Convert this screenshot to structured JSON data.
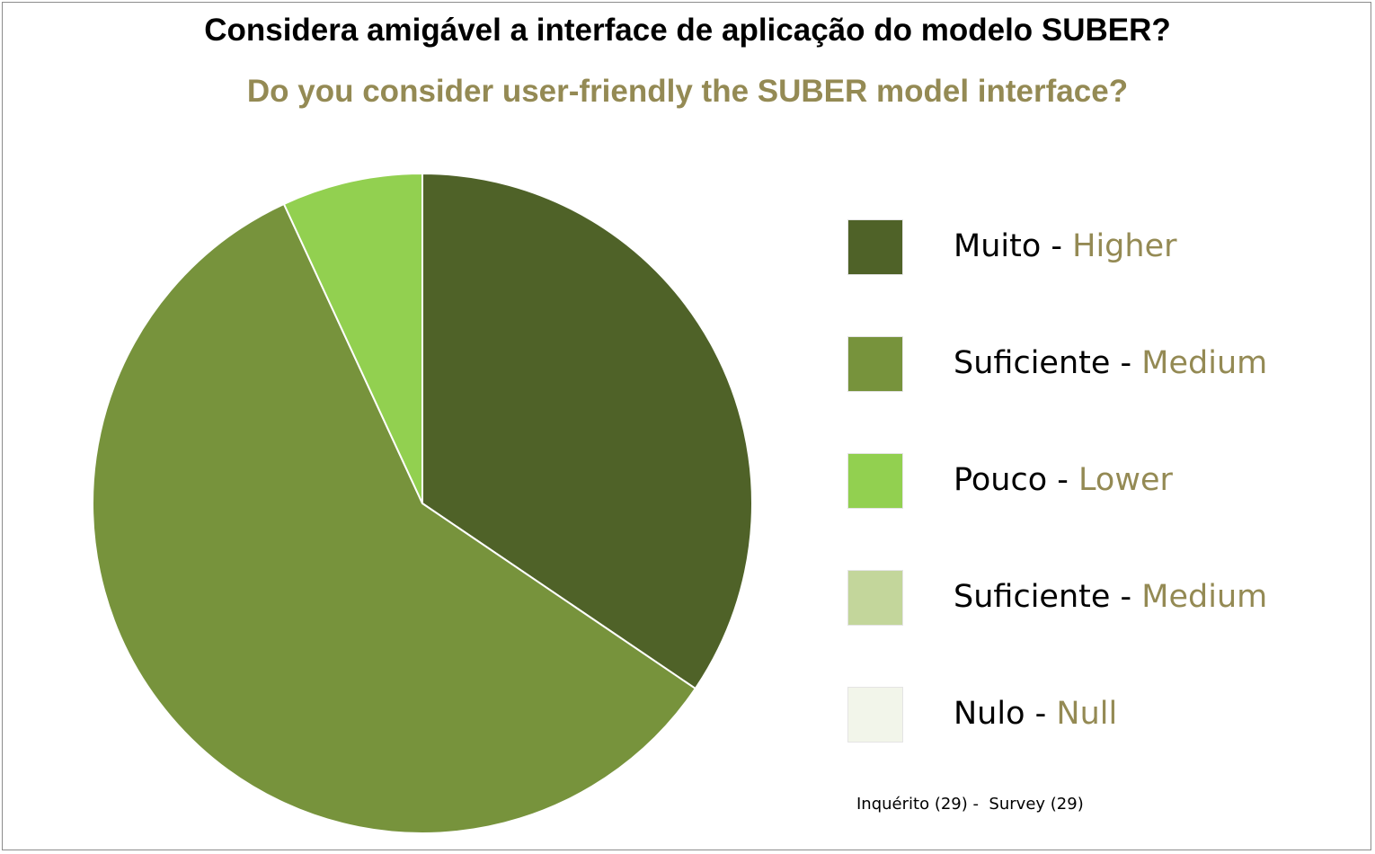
{
  "chart_data": {
    "type": "pie",
    "title": "Considera amigável a interface de aplicação do modelo SUBER?",
    "subtitle": "Do you consider user-friendly the SUBER model interface?",
    "slices": [
      {
        "label_pt": "Muito",
        "separator": " - ",
        "label_en": "Higher",
        "value": 10,
        "color": "#4f6228"
      },
      {
        "label_pt": "Suficiente",
        "separator": " - ",
        "label_en": "Medium",
        "value": 17,
        "color": "#77933c"
      },
      {
        "label_pt": "Pouco",
        "separator": " - ",
        "label_en": "Lower",
        "value": 2,
        "color": "#92d050"
      },
      {
        "label_pt": "Suficiente",
        "separator": " - ",
        "label_en": "Medium",
        "value": 0,
        "color": "#c3d69b"
      },
      {
        "label_pt": "Nulo",
        "separator": " - ",
        "label_en": "Null",
        "value": 0,
        "color": "#f2f5ea"
      }
    ],
    "legend_placement": "right",
    "footnote": "Inquérito (29) -  Survey (29)"
  },
  "colors": {
    "subtitle": "#948a54",
    "legend_en": "#948a54"
  }
}
